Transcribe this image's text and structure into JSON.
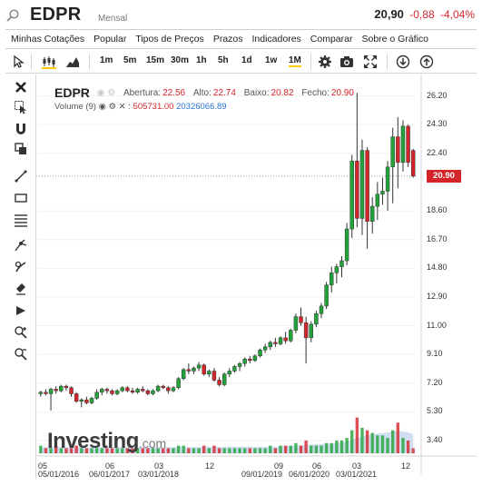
{
  "header": {
    "symbol": "EDPR",
    "period": "Mensal",
    "last": "20,90",
    "change": "-0,88",
    "change_pct": "-4,04%"
  },
  "menu": [
    "Minhas Cotações",
    "Popular",
    "Tipos de Preços",
    "Prazos",
    "Indicadores",
    "Comparar",
    "Sobre o Gráfico"
  ],
  "toolbar": {
    "timeframes": [
      "1m",
      "5m",
      "15m",
      "30m",
      "1h",
      "5h",
      "1d",
      "1w",
      "1M"
    ],
    "active_timeframe": "1M"
  },
  "legend": {
    "symbol": "EDPR",
    "open_label": "Abertura:",
    "open": "22.56",
    "high_label": "Alto:",
    "high": "22.74",
    "low_label": "Baixo:",
    "low": "20.82",
    "close_label": "Fecho:",
    "close": "20.90",
    "volume_label": "Volume (9)",
    "volume_value": "505731.00",
    "volume_ma": "20326066.89"
  },
  "logo": {
    "brand": "Investing",
    "suffix": ".com"
  },
  "colors": {
    "up": "#21a33a",
    "down": "#d4252b",
    "volume_area": "#c9d9f0"
  },
  "chart_data": {
    "type": "candlestick",
    "price_axis_ticks": [
      "26.20",
      "24.30",
      "22.40",
      "20.90",
      "18.60",
      "16.70",
      "14.80",
      "12.90",
      "11.00",
      "9.10",
      "7.20",
      "5.30",
      "3.40"
    ],
    "current_price": "20.90",
    "x_tick_labels": [
      "05",
      "05/01/2016",
      "06",
      "06/01/2017",
      "03",
      "03/01/2018",
      "12",
      "09",
      "09/01/2019",
      "06",
      "06/01/2020",
      "03",
      "03/01/2021",
      "12"
    ],
    "ylim": [
      2.5,
      27.5
    ],
    "ohlc": [
      [
        6.5,
        6.7,
        6.3,
        6.6
      ],
      [
        6.6,
        6.8,
        6.4,
        6.5
      ],
      [
        6.5,
        6.9,
        5.4,
        6.8
      ],
      [
        6.8,
        7.0,
        6.5,
        6.7
      ],
      [
        6.7,
        7.1,
        6.6,
        7.0
      ],
      [
        7.0,
        7.1,
        6.7,
        6.9
      ],
      [
        6.9,
        7.0,
        6.3,
        6.5
      ],
      [
        6.5,
        6.6,
        5.9,
        6.0
      ],
      [
        6.0,
        6.2,
        5.6,
        6.1
      ],
      [
        6.1,
        6.3,
        5.8,
        5.9
      ],
      [
        5.9,
        6.3,
        5.8,
        6.2
      ],
      [
        6.2,
        6.8,
        6.1,
        6.6
      ],
      [
        6.6,
        6.9,
        6.4,
        6.8
      ],
      [
        6.8,
        6.9,
        6.5,
        6.7
      ],
      [
        6.7,
        6.8,
        6.4,
        6.5
      ],
      [
        6.5,
        6.8,
        6.4,
        6.7
      ],
      [
        6.7,
        7.0,
        6.6,
        6.9
      ],
      [
        6.9,
        7.0,
        6.6,
        6.7
      ],
      [
        6.7,
        6.9,
        6.5,
        6.6
      ],
      [
        6.6,
        6.9,
        6.5,
        6.8
      ],
      [
        6.8,
        7.0,
        6.6,
        6.7
      ],
      [
        6.7,
        6.8,
        6.4,
        6.5
      ],
      [
        6.5,
        6.8,
        6.4,
        6.7
      ],
      [
        6.7,
        7.1,
        6.6,
        7.0
      ],
      [
        7.0,
        7.1,
        6.8,
        6.9
      ],
      [
        6.9,
        7.0,
        6.5,
        6.7
      ],
      [
        6.7,
        7.0,
        6.6,
        6.9
      ],
      [
        6.9,
        7.6,
        6.8,
        7.5
      ],
      [
        7.5,
        8.2,
        7.4,
        8.1
      ],
      [
        8.1,
        8.5,
        7.8,
        8.0
      ],
      [
        8.0,
        8.3,
        7.8,
        8.2
      ],
      [
        8.2,
        8.6,
        8.0,
        8.4
      ],
      [
        8.4,
        8.5,
        7.7,
        7.8
      ],
      [
        7.8,
        8.1,
        7.6,
        8.0
      ],
      [
        8.0,
        8.2,
        7.3,
        7.4
      ],
      [
        7.4,
        7.6,
        7.0,
        7.1
      ],
      [
        7.1,
        7.9,
        7.0,
        7.8
      ],
      [
        7.8,
        8.2,
        7.6,
        8.0
      ],
      [
        8.0,
        8.4,
        7.9,
        8.3
      ],
      [
        8.3,
        8.6,
        8.0,
        8.5
      ],
      [
        8.5,
        8.9,
        8.3,
        8.8
      ],
      [
        8.8,
        9.0,
        8.5,
        8.7
      ],
      [
        8.7,
        9.1,
        8.6,
        9.0
      ],
      [
        9.0,
        9.5,
        8.9,
        9.4
      ],
      [
        9.4,
        9.8,
        9.2,
        9.6
      ],
      [
        9.6,
        10.0,
        9.4,
        9.9
      ],
      [
        9.9,
        10.2,
        9.6,
        9.8
      ],
      [
        9.8,
        10.3,
        9.7,
        10.2
      ],
      [
        10.2,
        10.6,
        9.8,
        10.0
      ],
      [
        10.0,
        10.8,
        9.9,
        10.7
      ],
      [
        10.7,
        11.8,
        10.5,
        11.6
      ],
      [
        11.6,
        12.2,
        11.0,
        11.2
      ],
      [
        11.2,
        11.6,
        8.5,
        10.2
      ],
      [
        10.2,
        11.3,
        9.9,
        11.1
      ],
      [
        11.1,
        12.0,
        10.9,
        11.8
      ],
      [
        11.8,
        12.5,
        11.5,
        12.3
      ],
      [
        12.3,
        13.9,
        12.1,
        13.7
      ],
      [
        13.7,
        14.9,
        13.2,
        14.5
      ],
      [
        14.5,
        15.1,
        13.8,
        14.9
      ],
      [
        14.9,
        15.6,
        14.2,
        15.3
      ],
      [
        15.3,
        17.8,
        15.0,
        17.4
      ],
      [
        17.4,
        22.3,
        16.8,
        21.9
      ],
      [
        21.9,
        26.4,
        17.5,
        18.1
      ],
      [
        18.1,
        23.3,
        17.0,
        22.6
      ],
      [
        22.6,
        22.8,
        16.1,
        17.9
      ],
      [
        17.9,
        19.5,
        17.1,
        18.9
      ],
      [
        18.9,
        20.5,
        18.0,
        19.7
      ],
      [
        19.7,
        20.8,
        19.0,
        19.9
      ],
      [
        19.9,
        21.9,
        18.6,
        21.5
      ],
      [
        21.5,
        24.1,
        19.1,
        23.5
      ],
      [
        23.5,
        24.8,
        20.1,
        21.8
      ],
      [
        21.8,
        24.6,
        21.2,
        24.2
      ],
      [
        24.2,
        24.3,
        21.5,
        21.8
      ],
      [
        22.6,
        22.7,
        20.8,
        20.9
      ]
    ],
    "volume": [
      3,
      2,
      2,
      3,
      2,
      2,
      2,
      3,
      2,
      2,
      2,
      2,
      2,
      2,
      2,
      2,
      2,
      2,
      2,
      2,
      2,
      2,
      2,
      2,
      2,
      2,
      2,
      3,
      3,
      2,
      2,
      2,
      3,
      2,
      3,
      2,
      2,
      2,
      2,
      2,
      2,
      2,
      2,
      2,
      2,
      3,
      2,
      3,
      3,
      3,
      4,
      3,
      5,
      3,
      3,
      3,
      4,
      4,
      5,
      5,
      6,
      9,
      14,
      10,
      9,
      8,
      7,
      7,
      6,
      9,
      12,
      6,
      5,
      2
    ],
    "volume_ma": [
      2.4,
      2.4,
      2.4,
      2.4,
      2.4,
      2.4,
      2.4,
      2.4,
      2.4,
      2.4,
      2.4,
      2.4,
      2.4,
      2.4,
      2.4,
      2.4,
      2.4,
      2.4,
      2.4,
      2.4,
      2.4,
      2.4,
      2.4,
      2.4,
      2.4,
      2.4,
      2.4,
      2.5,
      2.5,
      2.5,
      2.5,
      2.5,
      2.6,
      2.6,
      2.6,
      2.6,
      2.6,
      2.6,
      2.6,
      2.6,
      2.6,
      2.6,
      2.6,
      2.6,
      2.6,
      2.6,
      2.6,
      2.7,
      2.8,
      2.9,
      3.0,
      3.1,
      3.3,
      3.4,
      3.5,
      3.6,
      3.7,
      3.8,
      4.0,
      4.2,
      4.5,
      5.2,
      6.0,
      6.6,
      7.1,
      7.5,
      7.8,
      8.0,
      8.2,
      8.5,
      8.8,
      8.6,
      8.2,
      7.5
    ]
  }
}
